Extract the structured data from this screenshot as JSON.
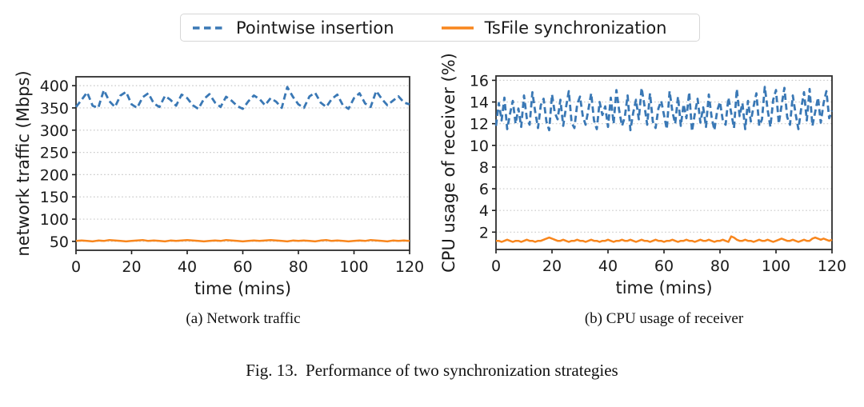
{
  "figure": {
    "caption_label": "Fig. 13.",
    "caption_text": "Performance of two synchronization strategies"
  },
  "legend": {
    "items": [
      {
        "label": "Pointwise insertion",
        "color": "#3a78b5",
        "style": "dashed"
      },
      {
        "label": "TsFile synchronization",
        "color": "#f8861d",
        "style": "solid"
      }
    ]
  },
  "colors": {
    "blue": "#3a78b5",
    "orange": "#f8861d",
    "grid": "#c9c9c9",
    "frame": "#2e2e2e",
    "tick": "#1a1a1a"
  },
  "chart_data": [
    {
      "type": "line",
      "title": "(a) Network traffic",
      "xlabel": "time (mins)",
      "ylabel": "network traffic (Mbps)",
      "xlim": [
        0,
        120
      ],
      "ylim": [
        30,
        420
      ],
      "xticks": [
        0,
        20,
        40,
        60,
        80,
        100,
        120
      ],
      "yticks": [
        50,
        100,
        150,
        200,
        250,
        300,
        350,
        400
      ],
      "grid": "horizontal-dotted",
      "legend_position": "above-figure",
      "x_step": 2,
      "series": [
        {
          "name": "Pointwise insertion",
          "style": "dashed",
          "color": "#3a78b5",
          "values": [
            352,
            368,
            385,
            355,
            350,
            390,
            365,
            352,
            378,
            386,
            358,
            350,
            374,
            383,
            360,
            352,
            377,
            368,
            355,
            380,
            372,
            356,
            348,
            370,
            381,
            362,
            352,
            375,
            366,
            354,
            348,
            365,
            378,
            370,
            356,
            372,
            364,
            350,
            397,
            375,
            358,
            350,
            376,
            384,
            362,
            352,
            370,
            380,
            356,
            348,
            372,
            383,
            360,
            352,
            388,
            370,
            356,
            366,
            376,
            362,
            358
          ]
        },
        {
          "name": "TsFile synchronization",
          "style": "solid",
          "color": "#f8861d",
          "values": [
            51,
            52,
            51,
            50,
            52,
            51,
            53,
            52,
            51,
            50,
            51,
            52,
            53,
            51,
            52,
            51,
            50,
            52,
            51,
            52,
            53,
            52,
            51,
            50,
            51,
            52,
            51,
            53,
            52,
            51,
            50,
            51,
            52,
            51,
            52,
            53,
            52,
            51,
            50,
            52,
            51,
            52,
            51,
            50,
            52,
            53,
            51,
            52,
            51,
            50,
            51,
            52,
            51,
            53,
            52,
            51,
            50,
            52,
            51,
            52,
            51
          ]
        }
      ]
    },
    {
      "type": "line",
      "title": "(b) CPU usage of receiver",
      "xlabel": "time (mins)",
      "ylabel": "CPU usage of receiver (%)",
      "xlim": [
        0,
        120
      ],
      "ylim": [
        0.4,
        16.4
      ],
      "xticks": [
        0,
        20,
        40,
        60,
        80,
        100,
        120
      ],
      "yticks": [
        2,
        4,
        6,
        8,
        10,
        12,
        14,
        16
      ],
      "grid": "horizontal-dotted",
      "legend_position": "above-figure",
      "x_step": 1,
      "series": [
        {
          "name": "Pointwise insertion",
          "style": "dashed",
          "color": "#3a78b5",
          "values": [
            11.8,
            13.9,
            12.3,
            14.4,
            11.5,
            12.9,
            14.1,
            12.0,
            13.4,
            11.7,
            14.6,
            12.5,
            11.9,
            14.9,
            13.1,
            11.6,
            13.7,
            14.3,
            12.2,
            11.4,
            14.7,
            13.0,
            12.4,
            14.2,
            11.8,
            13.5,
            15.0,
            12.1,
            11.6,
            13.8,
            14.5,
            12.7,
            11.9,
            13.3,
            14.8,
            12.3,
            11.5,
            14.0,
            12.8,
            13.6,
            11.7,
            14.4,
            12.0,
            15.1,
            13.2,
            11.8,
            12.6,
            14.6,
            11.4,
            13.0,
            14.2,
            12.4,
            15.3,
            13.7,
            11.9,
            14.8,
            12.2,
            11.6,
            13.4,
            14.1,
            12.8,
            11.5,
            15.0,
            13.1,
            12.0,
            14.5,
            11.8,
            13.8,
            12.5,
            14.9,
            11.3,
            12.9,
            14.3,
            12.1,
            13.5,
            11.7,
            14.7,
            12.6,
            11.4,
            13.2,
            14.0,
            12.3,
            11.9,
            14.4,
            13.0,
            11.6,
            15.2,
            12.7,
            13.9,
            11.5,
            14.1,
            12.2,
            13.6,
            14.8,
            11.8,
            12.4,
            15.4,
            13.3,
            11.7,
            14.2,
            15.1,
            12.0,
            13.7,
            15.3,
            12.6,
            11.9,
            14.6,
            12.9,
            11.5,
            13.4,
            14.9,
            12.3,
            15.2,
            11.8,
            13.1,
            14.4,
            12.1,
            13.9,
            15.0,
            12.5,
            13.2
          ]
        },
        {
          "name": "TsFile synchronization",
          "style": "solid",
          "color": "#f8861d",
          "values": [
            1.2,
            1.2,
            1.1,
            1.2,
            1.3,
            1.2,
            1.1,
            1.2,
            1.2,
            1.1,
            1.2,
            1.3,
            1.2,
            1.2,
            1.1,
            1.2,
            1.2,
            1.3,
            1.4,
            1.5,
            1.4,
            1.3,
            1.2,
            1.2,
            1.3,
            1.2,
            1.1,
            1.2,
            1.2,
            1.3,
            1.2,
            1.2,
            1.1,
            1.2,
            1.3,
            1.2,
            1.2,
            1.1,
            1.2,
            1.2,
            1.3,
            1.2,
            1.1,
            1.2,
            1.2,
            1.3,
            1.2,
            1.2,
            1.3,
            1.2,
            1.1,
            1.2,
            1.3,
            1.2,
            1.2,
            1.1,
            1.2,
            1.3,
            1.2,
            1.2,
            1.1,
            1.2,
            1.2,
            1.3,
            1.2,
            1.1,
            1.2,
            1.2,
            1.3,
            1.2,
            1.2,
            1.1,
            1.2,
            1.3,
            1.2,
            1.2,
            1.3,
            1.2,
            1.1,
            1.2,
            1.2,
            1.3,
            1.2,
            1.1,
            1.6,
            1.5,
            1.3,
            1.2,
            1.2,
            1.3,
            1.2,
            1.2,
            1.1,
            1.2,
            1.3,
            1.2,
            1.2,
            1.3,
            1.2,
            1.1,
            1.2,
            1.3,
            1.4,
            1.3,
            1.2,
            1.2,
            1.3,
            1.2,
            1.1,
            1.2,
            1.3,
            1.2,
            1.2,
            1.4,
            1.5,
            1.4,
            1.3,
            1.4,
            1.3,
            1.2,
            1.3
          ]
        }
      ]
    }
  ]
}
